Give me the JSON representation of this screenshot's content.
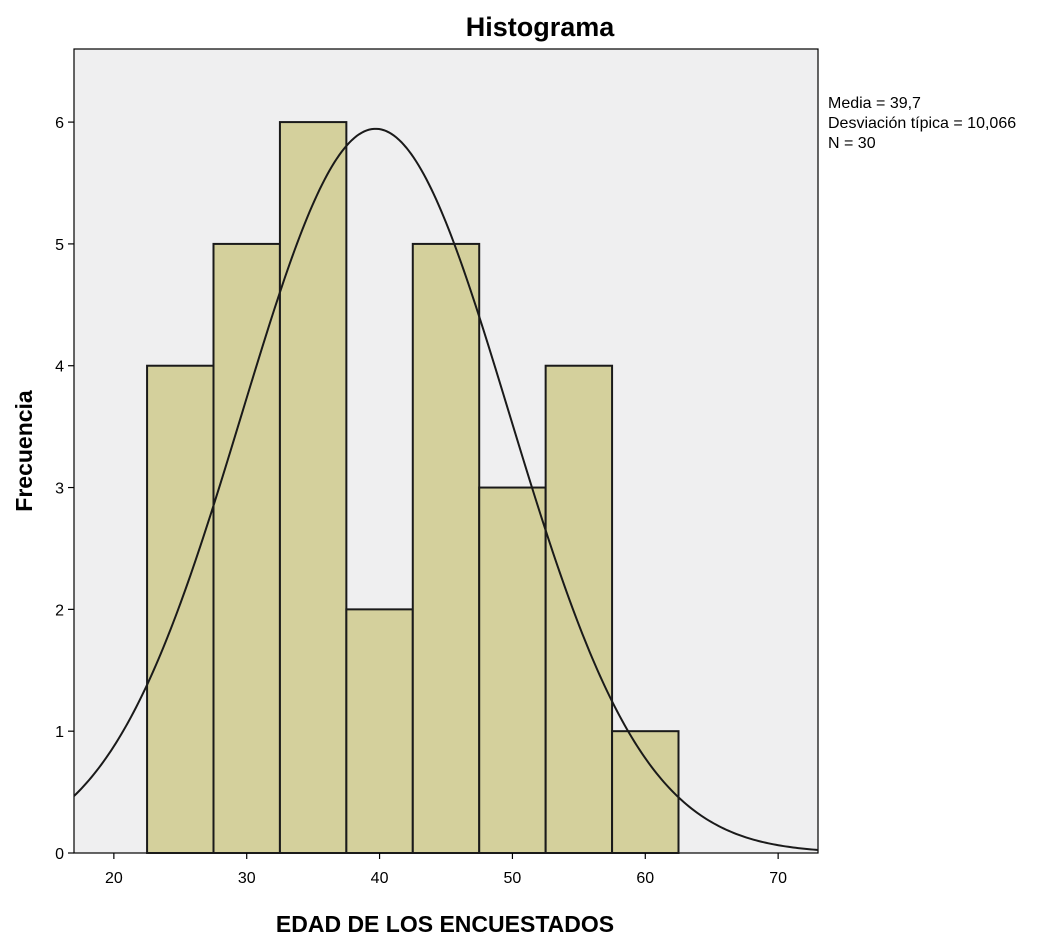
{
  "chart_data": {
    "type": "bar",
    "title": "Histograma",
    "xlabel": "EDAD DE LOS ENCUESTADOS",
    "ylabel": "Frecuencia",
    "bins": [
      {
        "start": 22.5,
        "end": 27.5,
        "value": 4
      },
      {
        "start": 27.5,
        "end": 32.5,
        "value": 5
      },
      {
        "start": 32.5,
        "end": 37.5,
        "value": 6
      },
      {
        "start": 37.5,
        "end": 42.5,
        "value": 2
      },
      {
        "start": 42.5,
        "end": 47.5,
        "value": 5
      },
      {
        "start": 47.5,
        "end": 52.5,
        "value": 3
      },
      {
        "start": 52.5,
        "end": 57.5,
        "value": 4
      },
      {
        "start": 57.5,
        "end": 62.5,
        "value": 1
      }
    ],
    "xlim": [
      17,
      73
    ],
    "ylim": [
      0,
      6.6
    ],
    "xticks": [
      20,
      30,
      40,
      50,
      60,
      70
    ],
    "yticks": [
      0,
      1,
      2,
      3,
      4,
      5,
      6
    ],
    "normal_curve": {
      "mean": 39.7,
      "std": 10.066,
      "n": 30,
      "bin_width": 5
    },
    "stats": [
      "Media = 39,7",
      "Desviación típica = 10,066",
      "N = 30"
    ],
    "grid": false,
    "colors": {
      "bar_fill": "#d4d09c",
      "bar_stroke": "#1a1a1a",
      "plot_background": "#efeff0",
      "curve": "#1a1a1a"
    }
  }
}
